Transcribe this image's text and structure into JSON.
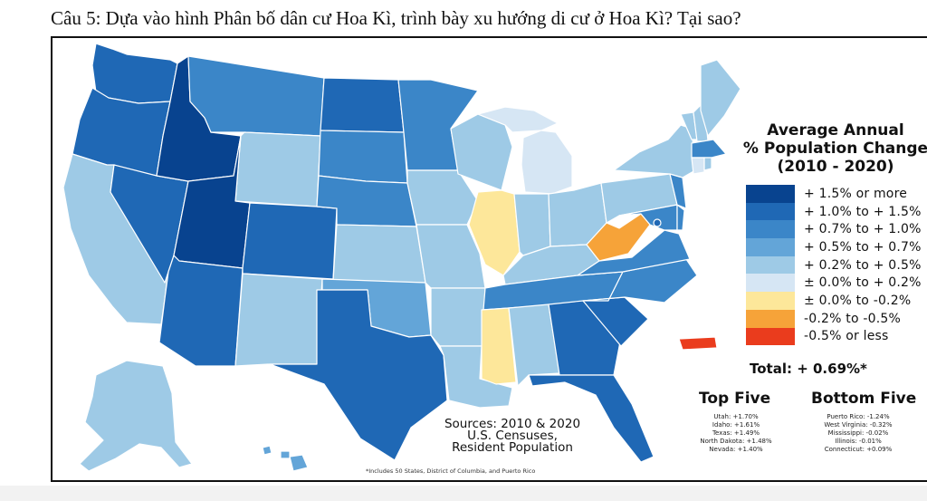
{
  "question": "Câu 5: Dựa vào hình  Phân bố dân cư Hoa Kì, trình bày xu hướng di cư ở Hoa Kì? Tại sao?",
  "legend": {
    "title_lines": [
      "Average Annual",
      "% Population Change",
      "(2010 - 2020)"
    ],
    "items": [
      {
        "label": "+ 1.5% or more",
        "color": "#08438f"
      },
      {
        "label": "+ 1.0% to + 1.5%",
        "color": "#1f68b5"
      },
      {
        "label": "+ 0.7% to + 1.0%",
        "color": "#3b86c8"
      },
      {
        "label": "+ 0.5% to + 0.7%",
        "color": "#63a5d8"
      },
      {
        "label": "+ 0.2% to + 0.5%",
        "color": "#9ecae6"
      },
      {
        "label": "± 0.0% to + 0.2%",
        "color": "#d6e6f4"
      },
      {
        "label": "± 0.0% to -0.2%",
        "color": "#fde79a"
      },
      {
        "label": "-0.2% to -0.5%",
        "color": "#f6a339"
      },
      {
        "label": "-0.5% or less",
        "color": "#ea3c1d"
      }
    ]
  },
  "total": "Total: + 0.69%*",
  "top_five": {
    "heading": "Top Five",
    "items": [
      "Utah: +1.70%",
      "Idaho: +1.61%",
      "Texas: +1.49%",
      "North Dakota: +1.48%",
      "Nevada: +1.40%"
    ]
  },
  "bottom_five": {
    "heading": "Bottom Five",
    "items": [
      "Puerto Rico: -1.24%",
      "West Virginia: -0.32%",
      "Mississippi: -0.02%",
      "Illinois: -0.01%",
      "Connecticut: +0.09%"
    ]
  },
  "sources": {
    "lines": [
      "Sources: 2010 & 2020",
      "U.S. Censuses,",
      "Resident Population"
    ]
  },
  "footnote": "*Includes 50 States, District of Columbia, and Puerto Rico",
  "colors": {
    "border": "#ffffff",
    "frame": "#111111"
  }
}
